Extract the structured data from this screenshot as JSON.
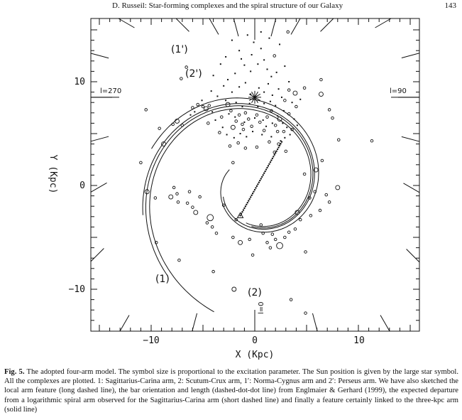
{
  "header": {
    "title": "D. Russeil: Star-forming complexes and the spiral structure of our Galaxy",
    "page_number": "143"
  },
  "figure": {
    "xlabel": "X (Kpc)",
    "ylabel": "Y (Kpc)",
    "x_ticks": [
      "−10",
      "0",
      "10"
    ],
    "y_ticks": [
      "10",
      "0",
      "−10"
    ],
    "longitude_labels": {
      "left": "l=270",
      "right": "l=90",
      "bottom": "l=0"
    },
    "arm_labels": [
      "(1')",
      "(2')",
      "(1)",
      "(2)"
    ]
  },
  "chart_data": {
    "type": "scatter",
    "title": "",
    "xlabel": "X (Kpc)",
    "ylabel": "Y (Kpc)",
    "xlim": [
      -16,
      16
    ],
    "ylim": [
      -14,
      16
    ],
    "sun": {
      "x": 0,
      "y": 8.5
    },
    "bar": {
      "from": [
        -1.4,
        -2.9
      ],
      "to": [
        2.6,
        4.2
      ]
    },
    "arms": [
      {
        "name": "(1)",
        "type": "logarithmic spiral"
      },
      {
        "name": "(2)",
        "type": "logarithmic spiral"
      },
      {
        "name": "(1')",
        "type": "logarithmic spiral"
      },
      {
        "name": "(2')",
        "type": "logarithmic spiral"
      }
    ],
    "complexes": [
      {
        "x": -10.5,
        "y": 7.3,
        "size": 1
      },
      {
        "x": -9.2,
        "y": 5.5,
        "size": 1
      },
      {
        "x": -8.8,
        "y": 4.0,
        "size": 2
      },
      {
        "x": -7.9,
        "y": 5.9,
        "size": 1
      },
      {
        "x": -7.5,
        "y": 6.2,
        "size": 2
      },
      {
        "x": -7.0,
        "y": 5.8,
        "size": 1
      },
      {
        "x": -6.0,
        "y": 7.5,
        "size": 1
      },
      {
        "x": -5.5,
        "y": 7.8,
        "size": 1
      },
      {
        "x": -5.0,
        "y": 7.6,
        "size": 1
      },
      {
        "x": -4.7,
        "y": 7.4,
        "size": 2
      },
      {
        "x": -4.4,
        "y": 7.7,
        "size": 1
      },
      {
        "x": -3.2,
        "y": 6.6,
        "size": 1
      },
      {
        "x": -2.6,
        "y": 7.8,
        "size": 2
      },
      {
        "x": -2.3,
        "y": 7.2,
        "size": 1
      },
      {
        "x": -2.1,
        "y": 5.6,
        "size": 2
      },
      {
        "x": -1.8,
        "y": 6.2,
        "size": 1
      },
      {
        "x": -1.5,
        "y": 6.8,
        "size": 1
      },
      {
        "x": -1.2,
        "y": 5.9,
        "size": 1
      },
      {
        "x": -0.9,
        "y": 7.0,
        "size": 1
      },
      {
        "x": -0.6,
        "y": 6.4,
        "size": 1
      },
      {
        "x": -0.3,
        "y": 5.7,
        "size": 1
      },
      {
        "x": 0.2,
        "y": 6.8,
        "size": 1
      },
      {
        "x": 0.5,
        "y": 6.1,
        "size": 1
      },
      {
        "x": 0.9,
        "y": 5.3,
        "size": 1
      },
      {
        "x": 1.2,
        "y": 6.6,
        "size": 1
      },
      {
        "x": 1.6,
        "y": 7.2,
        "size": 1
      },
      {
        "x": 2.0,
        "y": 5.8,
        "size": 1
      },
      {
        "x": 2.4,
        "y": 6.4,
        "size": 2
      },
      {
        "x": 2.8,
        "y": 5.2,
        "size": 1
      },
      {
        "x": 3.3,
        "y": 6.9,
        "size": 1
      },
      {
        "x": 3.6,
        "y": 5.4,
        "size": 1
      },
      {
        "x": 4.0,
        "y": 7.6,
        "size": 1
      },
      {
        "x": 3.9,
        "y": 8.9,
        "size": 2
      },
      {
        "x": 4.8,
        "y": 9.4,
        "size": 1
      },
      {
        "x": 6.4,
        "y": 8.8,
        "size": 2
      },
      {
        "x": 7.2,
        "y": 7.3,
        "size": 1
      },
      {
        "x": 7.5,
        "y": 6.5,
        "size": 1
      },
      {
        "x": 8.1,
        "y": 4.4,
        "size": 1
      },
      {
        "x": 11.3,
        "y": 4.3,
        "size": 1
      },
      {
        "x": 2.9,
        "y": 8.2,
        "size": 1
      },
      {
        "x": 3.3,
        "y": 9.2,
        "size": 1
      },
      {
        "x": 6.4,
        "y": 10.2,
        "size": 1
      },
      {
        "x": 3.2,
        "y": 14.8,
        "size": 1
      },
      {
        "x": 1.9,
        "y": 12.5,
        "size": 1
      },
      {
        "x": -11.0,
        "y": 2.2,
        "size": 1
      },
      {
        "x": -6.6,
        "y": 11.4,
        "size": 1
      },
      {
        "x": -4.5,
        "y": 6.0,
        "size": 1
      },
      {
        "x": -10.4,
        "y": -0.6,
        "size": 2
      },
      {
        "x": -9.6,
        "y": -1.2,
        "size": 1
      },
      {
        "x": -8.1,
        "y": -1.1,
        "size": 2
      },
      {
        "x": -7.8,
        "y": -0.2,
        "size": 1
      },
      {
        "x": -7.5,
        "y": -0.8,
        "size": 1
      },
      {
        "x": -7.4,
        "y": -1.6,
        "size": 1
      },
      {
        "x": -6.5,
        "y": -1.7,
        "size": 1
      },
      {
        "x": -6.3,
        "y": -0.6,
        "size": 1
      },
      {
        "x": -6.0,
        "y": -2.1,
        "size": 1
      },
      {
        "x": -5.3,
        "y": -1.1,
        "size": 1
      },
      {
        "x": -5.7,
        "y": -2.6,
        "size": 2
      },
      {
        "x": -4.3,
        "y": -3.1,
        "size": 3
      },
      {
        "x": -4.6,
        "y": -3.6,
        "size": 1
      },
      {
        "x": -4.1,
        "y": -4.0,
        "size": 1
      },
      {
        "x": -3.7,
        "y": -4.6,
        "size": 1
      },
      {
        "x": -9.5,
        "y": -5.5,
        "size": 1
      },
      {
        "x": -7.3,
        "y": -7.2,
        "size": 1
      },
      {
        "x": -4.0,
        "y": -8.3,
        "size": 1
      },
      {
        "x": -2.1,
        "y": -5.0,
        "size": 1
      },
      {
        "x": -1.4,
        "y": -5.5,
        "size": 2
      },
      {
        "x": -0.5,
        "y": -5.2,
        "size": 1
      },
      {
        "x": 0.8,
        "y": -4.6,
        "size": 1
      },
      {
        "x": 1.2,
        "y": -5.5,
        "size": 1
      },
      {
        "x": 1.7,
        "y": -4.7,
        "size": 1
      },
      {
        "x": 2.0,
        "y": -5.2,
        "size": 1
      },
      {
        "x": 2.4,
        "y": -5.8,
        "size": 3
      },
      {
        "x": 2.9,
        "y": -5.0,
        "size": 1
      },
      {
        "x": 3.3,
        "y": -4.5,
        "size": 1
      },
      {
        "x": 3.9,
        "y": -4.2,
        "size": 1
      },
      {
        "x": 4.4,
        "y": -3.3,
        "size": 1
      },
      {
        "x": 4.1,
        "y": -2.6,
        "size": 2
      },
      {
        "x": 5.4,
        "y": -2.9,
        "size": 1
      },
      {
        "x": 6.3,
        "y": -2.4,
        "size": 1
      },
      {
        "x": 7.2,
        "y": -1.6,
        "size": 1
      },
      {
        "x": 6.9,
        "y": -0.9,
        "size": 1
      },
      {
        "x": 5.8,
        "y": -0.6,
        "size": 1
      },
      {
        "x": 5.3,
        "y": -1.2,
        "size": 1
      },
      {
        "x": 4.8,
        "y": 1.1,
        "size": 1
      },
      {
        "x": 5.9,
        "y": 1.5,
        "size": 2
      },
      {
        "x": 8.0,
        "y": -0.2,
        "size": 2
      },
      {
        "x": 6.5,
        "y": 2.4,
        "size": 1
      },
      {
        "x": 1.5,
        "y": -6.0,
        "size": 1
      },
      {
        "x": -0.2,
        "y": -6.7,
        "size": 1
      },
      {
        "x": 4.9,
        "y": -6.4,
        "size": 1
      },
      {
        "x": -2.0,
        "y": -10.0,
        "size": 2
      },
      {
        "x": -1.8,
        "y": -3.3,
        "size": 1
      },
      {
        "x": -3.0,
        "y": -1.9,
        "size": 1
      },
      {
        "x": 0.6,
        "y": -3.8,
        "size": 1
      },
      {
        "x": -2.4,
        "y": 3.8,
        "size": 1
      },
      {
        "x": -2.1,
        "y": 2.2,
        "size": 1
      },
      {
        "x": -1.6,
        "y": 4.1,
        "size": 1
      },
      {
        "x": -0.9,
        "y": 3.6,
        "size": 1
      },
      {
        "x": 0.2,
        "y": 3.7,
        "size": 1
      },
      {
        "x": 1.4,
        "y": 4.2,
        "size": 1
      },
      {
        "x": 2.3,
        "y": 4.0,
        "size": 1
      },
      {
        "x": 3.0,
        "y": 3.3,
        "size": 1
      },
      {
        "x": 1.9,
        "y": 3.2,
        "size": 1
      },
      {
        "x": -3.4,
        "y": 5.1,
        "size": 1
      },
      {
        "x": -1.1,
        "y": 5.4,
        "size": 1
      },
      {
        "x": 2.2,
        "y": 5.2,
        "size": 1
      },
      {
        "x": 4.9,
        "y": -12.3,
        "size": 1
      },
      {
        "x": 3.5,
        "y": -11.0,
        "size": 1
      },
      {
        "x": -7.1,
        "y": 10.3,
        "size": 1
      }
    ],
    "dots": [
      {
        "x": -0.7,
        "y": 14.5
      },
      {
        "x": -0.1,
        "y": 13.8
      },
      {
        "x": 0.6,
        "y": 13.2
      },
      {
        "x": 0.9,
        "y": 12.1
      },
      {
        "x": -1.5,
        "y": 13.0
      },
      {
        "x": -2.2,
        "y": 14.0
      },
      {
        "x": -1.0,
        "y": 11.6
      },
      {
        "x": -0.4,
        "y": 11.0
      },
      {
        "x": 0.3,
        "y": 11.7
      },
      {
        "x": 1.2,
        "y": 11.2
      },
      {
        "x": 1.6,
        "y": 10.5
      },
      {
        "x": 2.1,
        "y": 10.9
      },
      {
        "x": -1.9,
        "y": 10.8
      },
      {
        "x": -2.6,
        "y": 10.2
      },
      {
        "x": -3.0,
        "y": 9.6
      },
      {
        "x": -2.2,
        "y": 9.0
      },
      {
        "x": -1.5,
        "y": 9.5
      },
      {
        "x": -0.9,
        "y": 9.9
      },
      {
        "x": -0.4,
        "y": 8.8
      },
      {
        "x": 0.4,
        "y": 9.4
      },
      {
        "x": 0.9,
        "y": 9.0
      },
      {
        "x": 1.3,
        "y": 9.8
      },
      {
        "x": 1.7,
        "y": 8.7
      },
      {
        "x": 2.3,
        "y": 9.3
      },
      {
        "x": 2.6,
        "y": 8.5
      },
      {
        "x": -3.6,
        "y": 8.6
      },
      {
        "x": -4.2,
        "y": 9.1
      },
      {
        "x": -2.8,
        "y": 8.2
      },
      {
        "x": -1.8,
        "y": 8.0
      },
      {
        "x": -1.2,
        "y": 7.6
      },
      {
        "x": -0.5,
        "y": 7.9
      },
      {
        "x": 0.3,
        "y": 7.6
      },
      {
        "x": 0.9,
        "y": 7.9
      },
      {
        "x": 1.5,
        "y": 8.1
      },
      {
        "x": 2.0,
        "y": 7.7
      },
      {
        "x": -2.5,
        "y": 6.9
      },
      {
        "x": -1.9,
        "y": 6.6
      },
      {
        "x": -1.0,
        "y": 6.1
      },
      {
        "x": 0.0,
        "y": 6.5
      },
      {
        "x": 0.8,
        "y": 6.3
      },
      {
        "x": 1.1,
        "y": 5.7
      },
      {
        "x": 1.7,
        "y": 6.0
      },
      {
        "x": 2.2,
        "y": 6.7
      },
      {
        "x": 2.7,
        "y": 6.0
      },
      {
        "x": 3.1,
        "y": 5.6
      },
      {
        "x": 3.4,
        "y": 4.9
      },
      {
        "x": 2.9,
        "y": 4.6
      },
      {
        "x": 2.5,
        "y": 4.3
      },
      {
        "x": 1.6,
        "y": 4.7
      },
      {
        "x": 0.7,
        "y": 4.9
      },
      {
        "x": -0.2,
        "y": 5.2
      },
      {
        "x": -0.8,
        "y": 4.7
      },
      {
        "x": -1.4,
        "y": 5.0
      },
      {
        "x": -2.0,
        "y": 4.6
      },
      {
        "x": -2.7,
        "y": 4.9
      },
      {
        "x": -3.1,
        "y": 5.6
      },
      {
        "x": -3.8,
        "y": 6.3
      },
      {
        "x": -4.1,
        "y": 7.1
      },
      {
        "x": -5.1,
        "y": 8.2
      },
      {
        "x": -5.8,
        "y": 7.1
      },
      {
        "x": -6.2,
        "y": 6.8
      },
      {
        "x": 3.6,
        "y": 8.0
      },
      {
        "x": 4.4,
        "y": 8.3
      },
      {
        "x": 2.8,
        "y": 7.2
      },
      {
        "x": 3.8,
        "y": 6.4
      },
      {
        "x": 4.1,
        "y": 5.8
      },
      {
        "x": -0.3,
        "y": 12.6
      },
      {
        "x": 0.6,
        "y": 14.8
      },
      {
        "x": -3.3,
        "y": 11.7
      },
      {
        "x": -4.0,
        "y": 10.6
      },
      {
        "x": 2.4,
        "y": 13.6
      },
      {
        "x": 1.4,
        "y": 14.2
      },
      {
        "x": -2.8,
        "y": 12.4
      },
      {
        "x": 3.3,
        "y": 10.0
      },
      {
        "x": 2.9,
        "y": 11.5
      },
      {
        "x": -1.3,
        "y": 12.2
      }
    ]
  },
  "caption": {
    "label": "Fig. 5.",
    "text": "The adopted four-arm model. The symbol size is proportional to the excitation parameter. The Sun position is given by the large star symbol. All the complexes are plotted. 1: Sagittarius-Carina arm, 2: Scutum-Crux arm, 1′: Norma-Cygnus arm and 2′: Perseus arm. We have also sketched the local arm feature (long dashed line), the bar orientation and length (dashed-dot-dot line) from Englmaier & Gerhard (1999), the expected departure from a logarithmic spiral arm observed for the Sagittarius-Carina arm (short dashed line) and finally a feature certainly linked to the three-kpc arm (solid line)"
  }
}
